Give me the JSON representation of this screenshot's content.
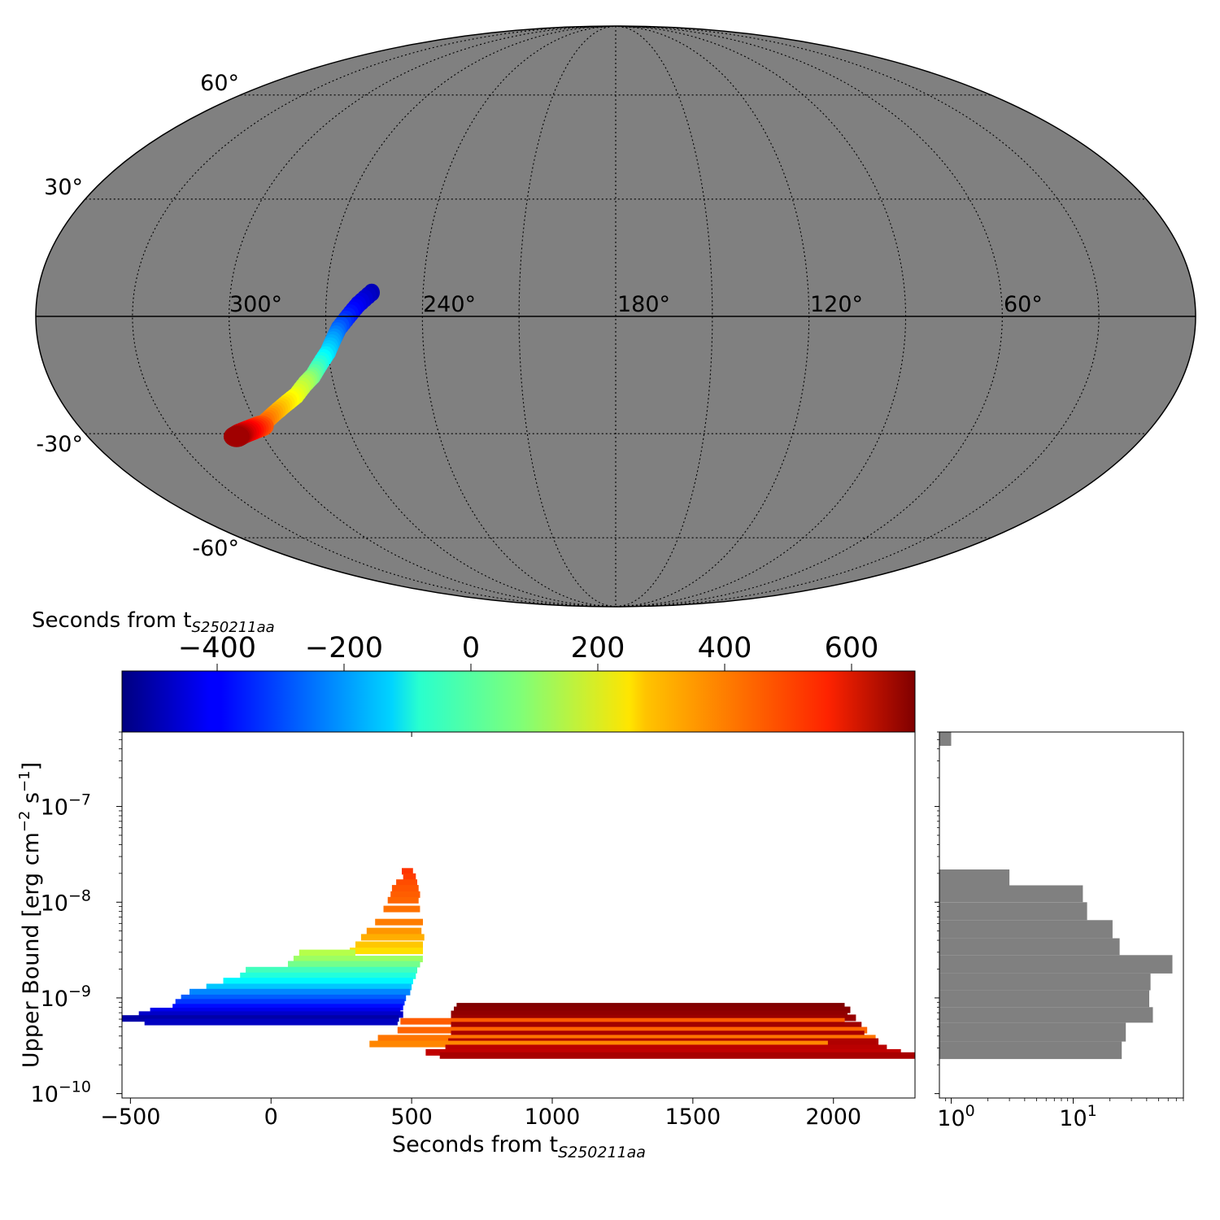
{
  "chart_data": [
    {
      "type": "map",
      "projection": "mollweide",
      "longitude_axis": "reversed (360 at left, 0 at right)",
      "background": "#808080",
      "grid": true,
      "lon_labels": [
        "300°",
        "240°",
        "180°",
        "120°",
        "60°"
      ],
      "lat_labels": [
        "60°",
        "30°",
        "-30°",
        "-60°"
      ],
      "colormap": "jet",
      "region": {
        "description_units": "lon/lat degrees, color = seconds",
        "points": [
          {
            "lon": 256,
            "lat": 6,
            "t": -480
          },
          {
            "lon": 260,
            "lat": 3,
            "t": -420
          },
          {
            "lon": 263,
            "lat": 0,
            "t": -360
          },
          {
            "lon": 266,
            "lat": -3,
            "t": -280
          },
          {
            "lon": 268,
            "lat": -6,
            "t": -200
          },
          {
            "lon": 270,
            "lat": -9,
            "t": -130
          },
          {
            "lon": 273,
            "lat": -12,
            "t": -40
          },
          {
            "lon": 276,
            "lat": -15,
            "t": 50
          },
          {
            "lon": 279,
            "lat": -17,
            "t": 130
          },
          {
            "lon": 283,
            "lat": -20,
            "t": 200
          },
          {
            "lon": 287,
            "lat": -22,
            "t": 260
          },
          {
            "lon": 291,
            "lat": -24,
            "t": 320
          },
          {
            "lon": 295,
            "lat": -26,
            "t": 380
          },
          {
            "lon": 299,
            "lat": -28,
            "t": 440
          },
          {
            "lon": 303,
            "lat": -29,
            "t": 520
          },
          {
            "lon": 307,
            "lat": -30,
            "t": 600
          },
          {
            "lon": 310,
            "lat": -31,
            "t": 680
          }
        ]
      }
    },
    {
      "type": "colorbar",
      "label_main": "Seconds from t",
      "label_sub": "S250211aa",
      "colormap": "jet",
      "range": [
        -550,
        700
      ],
      "ticks": [
        -400,
        -200,
        0,
        200,
        400,
        600
      ],
      "tick_labels": [
        "−400",
        "−200",
        "0",
        "200",
        "400",
        "600"
      ]
    },
    {
      "type": "bar",
      "orientation": "horizontal-intervals",
      "xlabel_main": "Seconds from t",
      "xlabel_sub": "S250211aa",
      "ylabel": "Upper Bound [erg cm$^{-2}$ s$^{-1}$]",
      "ylabel_parts": [
        "Upper Bound [erg cm",
        "−2",
        " s",
        "−1",
        "]"
      ],
      "xlim": [
        -530,
        2290
      ],
      "ylim": [
        9e-11,
        6e-07
      ],
      "yscale": "log",
      "xticks": [
        -500,
        0,
        500,
        1000,
        1500,
        2000
      ],
      "xtick_labels": [
        "−500",
        "0",
        "500",
        "1000",
        "1500",
        "2000"
      ],
      "yticks": [
        1e-10,
        1e-09,
        1e-08,
        1e-07
      ],
      "ytick_labels": [
        [
          "10",
          "−10"
        ],
        [
          "10",
          "−9"
        ],
        [
          "10",
          "−8"
        ],
        [
          "10",
          "−7"
        ]
      ],
      "segments": [
        {
          "x0": 465,
          "x1": 505,
          "y": 2.1e-08,
          "t": 480
        },
        {
          "x0": 470,
          "x1": 515,
          "y": 1.85e-08,
          "t": 470
        },
        {
          "x0": 445,
          "x1": 520,
          "y": 1.6e-08,
          "t": 450
        },
        {
          "x0": 430,
          "x1": 525,
          "y": 1.4e-08,
          "t": 440
        },
        {
          "x0": 425,
          "x1": 530,
          "y": 1.2e-08,
          "t": 430
        },
        {
          "x0": 415,
          "x1": 525,
          "y": 1.05e-08,
          "t": 420
        },
        {
          "x0": 400,
          "x1": 530,
          "y": 8.5e-09,
          "t": 405
        },
        {
          "x0": 370,
          "x1": 540,
          "y": 6.2e-09,
          "t": 390
        },
        {
          "x0": 340,
          "x1": 535,
          "y": 5e-09,
          "t": 360
        },
        {
          "x0": 320,
          "x1": 545,
          "y": 4.3e-09,
          "t": 330
        },
        {
          "x0": 300,
          "x1": 540,
          "y": 3.6e-09,
          "t": 300
        },
        {
          "x0": 280,
          "x1": 540,
          "y": 3.1e-09,
          "t": 270
        },
        {
          "x0": 100,
          "x1": 300,
          "y": 2.95e-09,
          "t": 140
        },
        {
          "x0": 80,
          "x1": 540,
          "y": 2.55e-09,
          "t": 110
        },
        {
          "x0": 60,
          "x1": 530,
          "y": 2.25e-09,
          "t": 60
        },
        {
          "x0": -90,
          "x1": 520,
          "y": 1.95e-09,
          "t": 0
        },
        {
          "x0": -110,
          "x1": 515,
          "y": 1.7e-09,
          "t": -40
        },
        {
          "x0": -170,
          "x1": 505,
          "y": 1.5e-09,
          "t": -90
        },
        {
          "x0": -230,
          "x1": 500,
          "y": 1.3e-09,
          "t": -150
        },
        {
          "x0": -290,
          "x1": 495,
          "y": 1.15e-09,
          "t": -230
        },
        {
          "x0": -320,
          "x1": 480,
          "y": 1e-09,
          "t": -280
        },
        {
          "x0": -340,
          "x1": 475,
          "y": 9e-10,
          "t": -330
        },
        {
          "x0": -350,
          "x1": 470,
          "y": 8e-10,
          "t": -380
        },
        {
          "x0": -430,
          "x1": 460,
          "y": 7.3e-10,
          "t": -420
        },
        {
          "x0": -470,
          "x1": 470,
          "y": 6.7e-10,
          "t": -460
        },
        {
          "x0": -530,
          "x1": 455,
          "y": 6.1e-10,
          "t": -500
        },
        {
          "x0": -450,
          "x1": 450,
          "y": 5.6e-10,
          "t": -470
        },
        {
          "x0": 660,
          "x1": 2040,
          "y": 8.2e-10,
          "t": 700
        },
        {
          "x0": 650,
          "x1": 2060,
          "y": 7.5e-10,
          "t": 690
        },
        {
          "x0": 640,
          "x1": 2050,
          "y": 6.8e-10,
          "t": 680
        },
        {
          "x0": 640,
          "x1": 2080,
          "y": 6.2e-10,
          "t": 670
        },
        {
          "x0": 460,
          "x1": 2040,
          "y": 5.7e-10,
          "t": 430
        },
        {
          "x0": 640,
          "x1": 2100,
          "y": 5.2e-10,
          "t": 660
        },
        {
          "x0": 450,
          "x1": 2120,
          "y": 4.6e-10,
          "t": 420
        },
        {
          "x0": 640,
          "x1": 2110,
          "y": 4.2e-10,
          "t": 650
        },
        {
          "x0": 380,
          "x1": 2150,
          "y": 3.8e-10,
          "t": 400
        },
        {
          "x0": 630,
          "x1": 2160,
          "y": 3.5e-10,
          "t": 640
        },
        {
          "x0": 350,
          "x1": 1980,
          "y": 3.3e-10,
          "t": 380
        },
        {
          "x0": 620,
          "x1": 2190,
          "y": 3e-10,
          "t": 630
        },
        {
          "x0": 550,
          "x1": 2240,
          "y": 2.7e-10,
          "t": 620
        },
        {
          "x0": 600,
          "x1": 2290,
          "y": 2.5e-10,
          "t": 650
        }
      ]
    },
    {
      "type": "histogram",
      "orientation": "horizontal",
      "xscale": "log",
      "xlim": [
        0.8,
        80
      ],
      "xticks": [
        1,
        10
      ],
      "xtick_labels": [
        [
          "10",
          "0"
        ],
        [
          "10",
          "1"
        ]
      ],
      "color": "#808080",
      "bins": [
        {
          "y0": 4.3e-07,
          "y1": 6e-07,
          "count": 1
        },
        {
          "y0": 1.5e-08,
          "y1": 2.2e-08,
          "count": 3
        },
        {
          "y0": 1e-08,
          "y1": 1.5e-08,
          "count": 12
        },
        {
          "y0": 6.5e-09,
          "y1": 1e-08,
          "count": 13
        },
        {
          "y0": 4.2e-09,
          "y1": 6.5e-09,
          "count": 21
        },
        {
          "y0": 2.8e-09,
          "y1": 4.2e-09,
          "count": 24
        },
        {
          "y0": 1.8e-09,
          "y1": 2.8e-09,
          "count": 65
        },
        {
          "y0": 1.2e-09,
          "y1": 1.8e-09,
          "count": 43
        },
        {
          "y0": 8e-10,
          "y1": 1.2e-09,
          "count": 42
        },
        {
          "y0": 5.5e-10,
          "y1": 8e-10,
          "count": 45
        },
        {
          "y0": 3.5e-10,
          "y1": 5.5e-10,
          "count": 27
        },
        {
          "y0": 2.3e-10,
          "y1": 3.5e-10,
          "count": 25
        }
      ]
    }
  ]
}
